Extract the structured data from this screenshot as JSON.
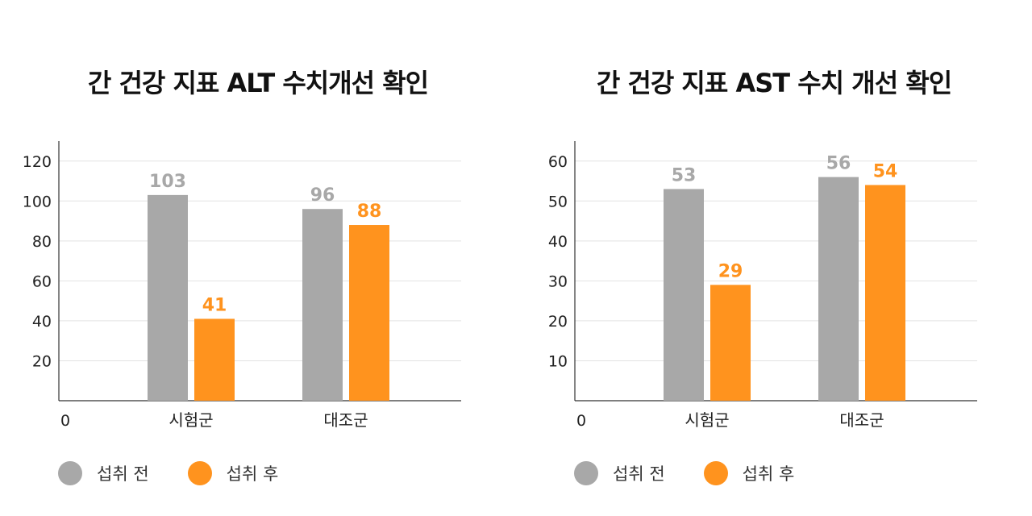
{
  "colors": {
    "before": "#A8A8A8",
    "after": "#FF931E"
  },
  "chart_data": [
    {
      "type": "bar",
      "title": "간 건강 지표 ALT 수치개선 확인",
      "categories": [
        "시험군",
        "대조군"
      ],
      "series": [
        {
          "name": "섭취 전",
          "values": [
            103,
            96
          ]
        },
        {
          "name": "섭취 후",
          "values": [
            41,
            88
          ]
        }
      ],
      "ylim": [
        0,
        130
      ],
      "yticks": [
        20,
        40,
        60,
        80,
        100,
        120
      ],
      "origin_label": "0",
      "grid": true,
      "legend": "bottom-left"
    },
    {
      "type": "bar",
      "title": "간 건강 지표 AST 수치 개선 확인",
      "categories": [
        "시험군",
        "대조군"
      ],
      "series": [
        {
          "name": "섭취 전",
          "values": [
            53,
            56
          ]
        },
        {
          "name": "섭취 후",
          "values": [
            29,
            54
          ]
        }
      ],
      "ylim": [
        0,
        65
      ],
      "yticks": [
        10,
        20,
        30,
        40,
        50,
        60
      ],
      "origin_label": "0",
      "grid": true,
      "legend": "bottom-left"
    }
  ]
}
